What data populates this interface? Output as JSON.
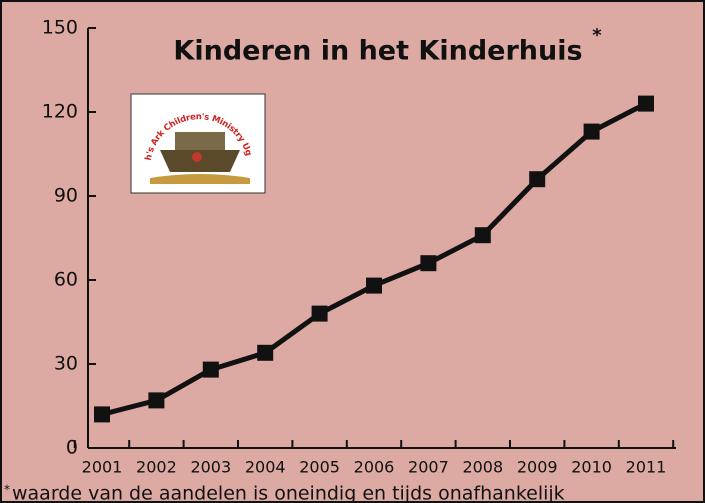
{
  "chart_data": {
    "type": "line",
    "title": "Kinderen in het Kinderhuis",
    "title_mark": "*",
    "logo_text": "Noah's Ark Children's Ministry Uganda",
    "footnote_mark": "*",
    "footnote": "waarde van de aandelen is oneindig en tijds onafhankelijk",
    "categories": [
      "2001",
      "2002",
      "2003",
      "2004",
      "2005",
      "2006",
      "2007",
      "2008",
      "2009",
      "2010",
      "2011"
    ],
    "values": [
      12,
      17,
      28,
      34,
      48,
      58,
      66,
      76,
      96,
      113,
      123
    ],
    "color": "#111111",
    "background": "#dcaaa2",
    "ylim": [
      0,
      150
    ],
    "yticks": [
      0,
      30,
      60,
      90,
      120,
      150
    ],
    "grid": false
  }
}
